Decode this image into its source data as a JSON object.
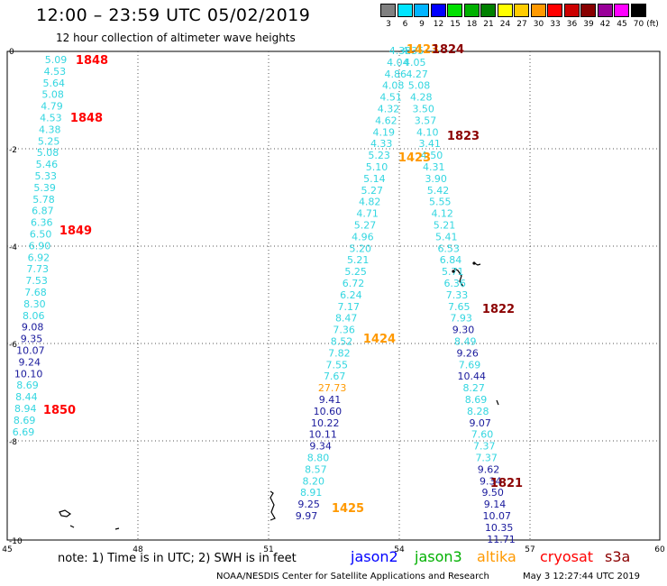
{
  "header": {
    "title": "12:00 – 23:59 UTC 05/02/2019",
    "subtitle": "12 hour collection of altimeter wave heights"
  },
  "legend": {
    "unit": "(ft)",
    "entries": [
      {
        "label": "3",
        "color": "#808080"
      },
      {
        "label": "6",
        "color": "#00e5ff"
      },
      {
        "label": "9",
        "color": "#00b4ff"
      },
      {
        "label": "12",
        "color": "#0000ff"
      },
      {
        "label": "15",
        "color": "#00e000"
      },
      {
        "label": "18",
        "color": "#00b000"
      },
      {
        "label": "21",
        "color": "#008000"
      },
      {
        "label": "24",
        "color": "#ffff00"
      },
      {
        "label": "27",
        "color": "#ffcc00"
      },
      {
        "label": "30",
        "color": "#ff9900"
      },
      {
        "label": "33",
        "color": "#ff0000"
      },
      {
        "label": "36",
        "color": "#cc0000"
      },
      {
        "label": "39",
        "color": "#880000"
      },
      {
        "label": "42",
        "color": "#990099"
      },
      {
        "label": "45",
        "color": "#ff00ff"
      },
      {
        "label": "70",
        "color": "#000000"
      }
    ]
  },
  "axes": {
    "x_labels": [
      "45",
      "48",
      "51",
      "54",
      "57",
      "60"
    ],
    "y_labels": [
      "0",
      "-2",
      "-4",
      "-6",
      "-8",
      "-10"
    ]
  },
  "colors": {
    "cyan": "#33d6e0",
    "navy": "#1a1a9c",
    "orange": "#ff9900",
    "red": "#ff0000",
    "darkred": "#8b0000"
  },
  "tracks": [
    {
      "id": "1848",
      "labels": [
        "5.09",
        "4.53",
        "5.64",
        "5.08",
        "4.79",
        "4.53",
        "4.38",
        "5.25",
        "5.08",
        "5.46",
        "5.33",
        "5.39",
        "5.78",
        "6.87",
        "6.36",
        "6.50",
        "6.90",
        "6.92",
        "7.73",
        "7.53",
        "7.68",
        "8.30",
        "8.06",
        "9.08",
        "9.35",
        "10.07",
        "9.24",
        "10.10",
        "8.69",
        "8.44",
        "8.94",
        "8.69",
        "6.69"
      ]
    },
    {
      "id": "1423",
      "labels": [
        "4.38",
        "4.04",
        "4.86",
        "4.08",
        "4.51",
        "4.32",
        "4.62",
        "4.19",
        "4.33",
        "5.23",
        "5.10",
        "5.14",
        "5.27",
        "4.82",
        "4.71",
        "5.27",
        "4.96",
        "5.20",
        "5.21",
        "5.25",
        "6.72",
        "6.24",
        "7.17",
        "8.47",
        "7.36",
        "8.52",
        "7.82",
        "7.55",
        "7.67",
        "27.73",
        "9.41",
        "10.60",
        "10.22",
        "10.11",
        "9.34",
        "8.80",
        "8.57",
        "8.20",
        "8.91",
        "9.25",
        "9.97"
      ]
    },
    {
      "id": "1823",
      "labels": [
        "4.35",
        "4.05",
        "4.27",
        "5.08",
        "4.28",
        "3.50",
        "3.57",
        "4.10",
        "3.41",
        "4.50",
        "4.31",
        "3.90",
        "5.42",
        "5.55",
        "4.12",
        "5.21",
        "5.41",
        "6.53",
        "6.84",
        "5.71",
        "6.36",
        "7.33",
        "7.65",
        "7.93",
        "9.30",
        "8.49",
        "9.26",
        "7.69",
        "10.44",
        "8.27",
        "8.69",
        "8.28",
        "9.07",
        "7.60",
        "7.37",
        "7.37",
        "9.62",
        "9.34",
        "9.50",
        "9.14",
        "10.07",
        "10.35",
        "11.71"
      ]
    }
  ],
  "passes": [
    {
      "text": "1848",
      "color": "red"
    },
    {
      "text": "1848",
      "color": "red"
    },
    {
      "text": "1849",
      "color": "red"
    },
    {
      "text": "1850",
      "color": "red"
    },
    {
      "text": "1423",
      "color": "orange"
    },
    {
      "text": "1824",
      "color": "darkred"
    },
    {
      "text": "1823",
      "color": "darkred"
    },
    {
      "text": "1423",
      "color": "orange"
    },
    {
      "text": "1424",
      "color": "orange"
    },
    {
      "text": "1822",
      "color": "darkred"
    },
    {
      "text": "1821",
      "color": "darkred"
    },
    {
      "text": "1425",
      "color": "orange"
    }
  ],
  "footer": {
    "note": "note:  1) Time is in UTC;  2) SWH is in feet",
    "satellites": [
      {
        "name": "jason2",
        "color": "#0000ff"
      },
      {
        "name": "jason3",
        "color": "#00b000"
      },
      {
        "name": "altika",
        "color": "#ff9900"
      },
      {
        "name": "cryosat",
        "color": "#ff0000"
      },
      {
        "name": "s3a",
        "color": "#8b0000"
      }
    ],
    "credit": "NOAA/NESDIS Center for Satellite Applications and Research",
    "timestamp": "May  3 12:27:44 UTC 2019"
  }
}
